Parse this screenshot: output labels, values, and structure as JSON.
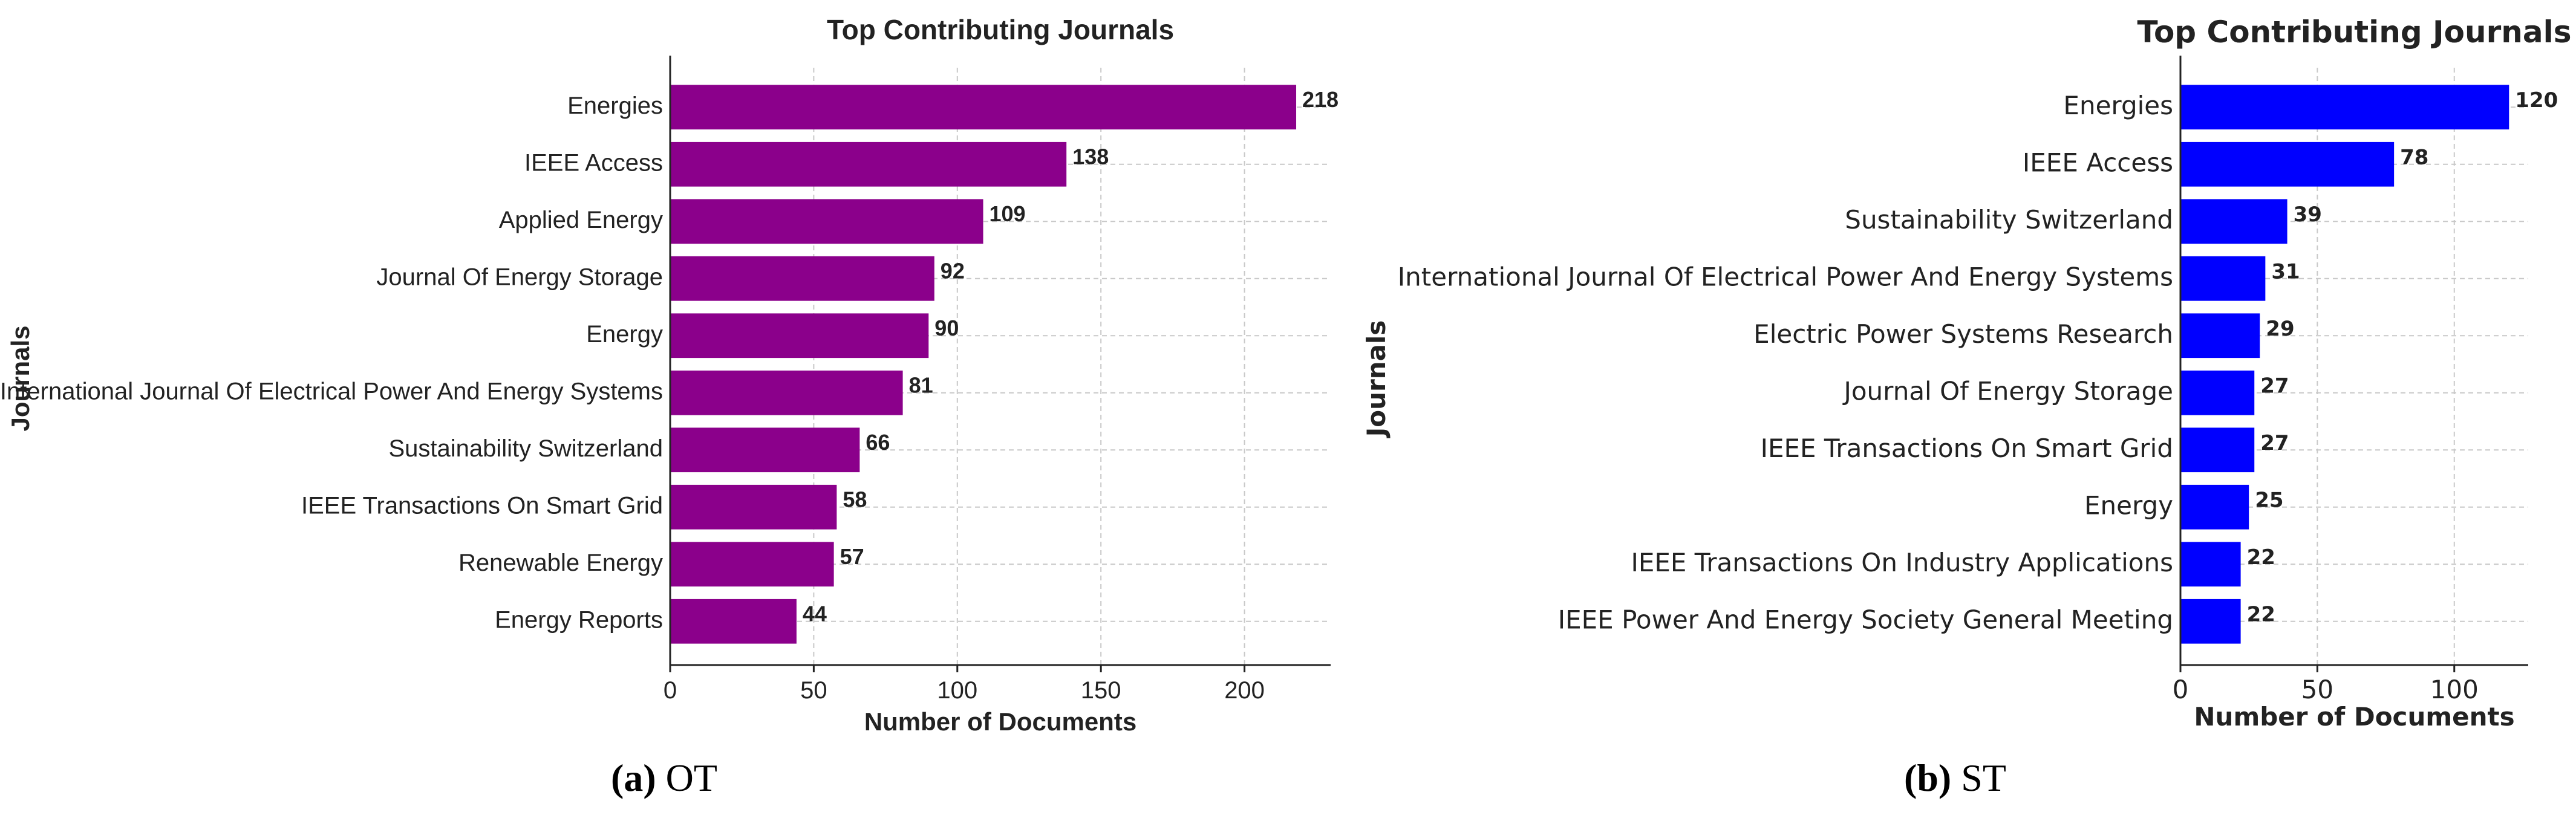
{
  "chart_data": [
    {
      "type": "bar",
      "orientation": "horizontal",
      "title": "Top Contributing Journals",
      "xlabel": "Number of Documents",
      "ylabel": "Journals",
      "xlim": [
        0,
        230
      ],
      "xticks": [
        0,
        50,
        100,
        150,
        200
      ],
      "grid": true,
      "bar_color": "#8b008b",
      "categories": [
        "Energies",
        "IEEE Access",
        "Applied Energy",
        "Journal Of Energy Storage",
        "Energy",
        "International Journal Of Electrical Power And Energy Systems",
        "Sustainability Switzerland",
        "IEEE Transactions On Smart Grid",
        "Renewable Energy",
        "Energy Reports"
      ],
      "values": [
        218,
        138,
        109,
        92,
        90,
        81,
        66,
        58,
        57,
        44
      ]
    },
    {
      "type": "bar",
      "orientation": "horizontal",
      "title": "Top Contributing Journals",
      "xlabel": "Number of Documents",
      "ylabel": "Journals",
      "xlim": [
        0,
        127
      ],
      "xticks": [
        0,
        50,
        100
      ],
      "grid": true,
      "bar_color": "#0000ff",
      "categories": [
        "Energies",
        "IEEE Access",
        "Sustainability Switzerland",
        "International Journal Of Electrical Power And Energy Systems",
        "Electric Power Systems Research",
        "Journal Of Energy Storage",
        "IEEE Transactions On Smart Grid",
        "Energy",
        "IEEE Transactions On Industry Applications",
        "IEEE Power And Energy Society General Meeting"
      ],
      "values": [
        120,
        78,
        39,
        31,
        29,
        27,
        27,
        25,
        22,
        22
      ]
    }
  ],
  "captions": [
    {
      "letter": "(a)",
      "text": "OT"
    },
    {
      "letter": "(b)",
      "text": "ST"
    }
  ]
}
